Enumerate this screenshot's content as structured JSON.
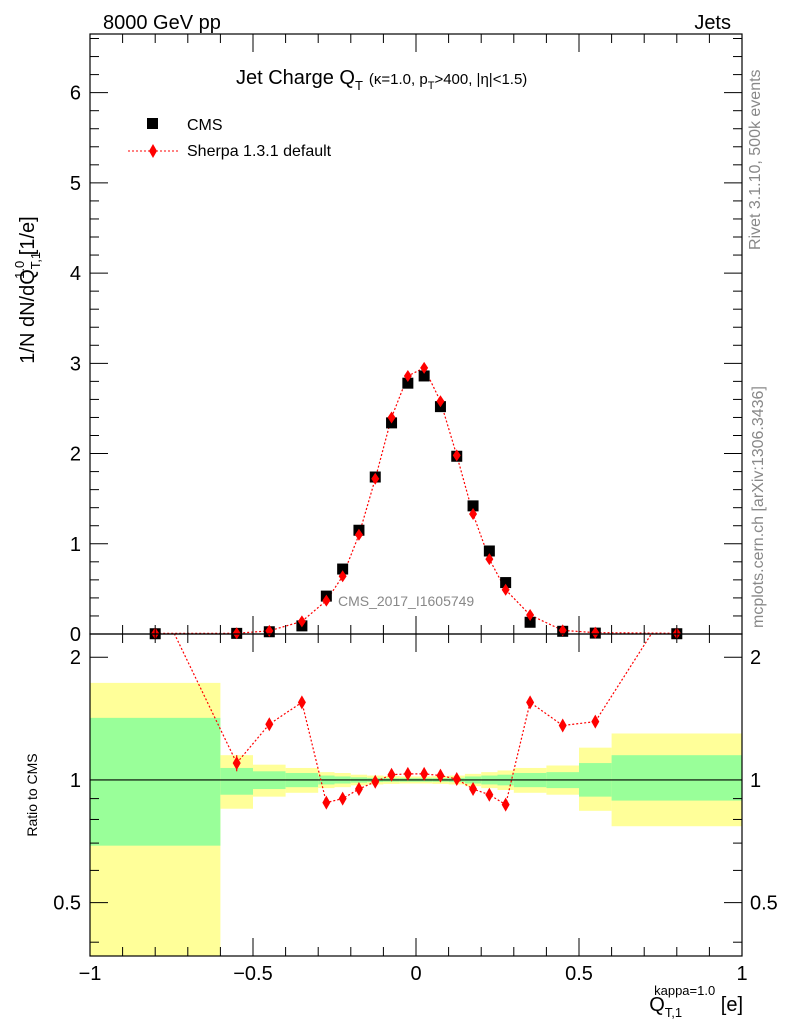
{
  "header": {
    "left": "8000 GeV pp",
    "right": "Jets",
    "side_top": "Rivet 3.1.10,  500k events",
    "side_bottom": "mcplots.cern.ch [arXiv:1306.3436]",
    "watermark": "CMS_2017_I1605749"
  },
  "chart_data": [
    {
      "type": "scatter",
      "panel": "main",
      "title": "Jet Charge Q",
      "title_sub": "T",
      "title_params": "(κ=1.0, p",
      "title_params_sub": "T",
      "title_params_rest": ">400, |η|<1.5)",
      "ylabel": "1/N dN/dQ",
      "ylabel_sup": "1.0",
      "ylabel_sub": "T,1",
      "ylabel_unit": " [1/e]",
      "xlim": [
        -1,
        1
      ],
      "ylim": [
        0,
        6.65
      ],
      "yticks": [
        "0",
        "1",
        "2",
        "3",
        "4",
        "5",
        "6"
      ],
      "legend_position": "top-left",
      "series": [
        {
          "name": "CMS",
          "color": "#000000",
          "marker": "square",
          "x": [
            -0.8,
            -0.55,
            -0.45,
            -0.35,
            -0.275,
            -0.225,
            -0.175,
            -0.125,
            -0.075,
            -0.025,
            0.025,
            0.075,
            0.125,
            0.175,
            0.225,
            0.275,
            0.35,
            0.45,
            0.55,
            0.8
          ],
          "y": [
            0.003,
            0.007,
            0.025,
            0.09,
            0.42,
            0.72,
            1.15,
            1.74,
            2.34,
            2.78,
            2.86,
            2.52,
            1.97,
            1.42,
            0.92,
            0.57,
            0.13,
            0.03,
            0.01,
            0.003
          ]
        },
        {
          "name": "Sherpa 1.3.1 default",
          "color": "#ff0000",
          "marker": "diamond",
          "line": "dotted",
          "x": [
            -0.8,
            -0.55,
            -0.45,
            -0.35,
            -0.275,
            -0.225,
            -0.175,
            -0.125,
            -0.075,
            -0.025,
            0.025,
            0.075,
            0.125,
            0.175,
            0.225,
            0.275,
            0.35,
            0.45,
            0.55,
            0.8
          ],
          "y": [
            0.007,
            0.008,
            0.035,
            0.14,
            0.37,
            0.64,
            1.1,
            1.72,
            2.4,
            2.86,
            2.95,
            2.58,
            1.98,
            1.33,
            0.83,
            0.49,
            0.21,
            0.04,
            0.015,
            0.008
          ]
        }
      ]
    },
    {
      "type": "scatter",
      "panel": "ratio",
      "ylabel": "Ratio to CMS",
      "xlabel": "Q",
      "xlabel_sup": "kappa=1.0",
      "xlabel_sub": "T,1",
      "xlabel_unit": " [e]",
      "xlim": [
        -1,
        1
      ],
      "ylim": [
        0.37,
        2.28
      ],
      "yscale": "log",
      "yticks": [
        "0.5",
        "1",
        "2"
      ],
      "xticks": [
        "−1",
        "−0.5",
        "0",
        "0.5",
        "1"
      ],
      "reference_line": 1,
      "bands": [
        {
          "x": [
            -1,
            -0.6
          ],
          "inner": [
            0.69,
            1.42
          ],
          "outer": [
            0.3,
            1.73
          ]
        },
        {
          "x": [
            -0.6,
            -0.5
          ],
          "inner": [
            0.92,
            1.07
          ],
          "outer": [
            0.85,
            1.15
          ]
        },
        {
          "x": [
            -0.5,
            -0.4
          ],
          "inner": [
            0.95,
            1.05
          ],
          "outer": [
            0.91,
            1.09
          ]
        },
        {
          "x": [
            -0.4,
            -0.3
          ],
          "inner": [
            0.96,
            1.04
          ],
          "outer": [
            0.93,
            1.07
          ]
        },
        {
          "x": [
            -0.3,
            -0.25
          ],
          "inner": [
            0.975,
            1.025
          ],
          "outer": [
            0.955,
            1.045
          ]
        },
        {
          "x": [
            -0.25,
            -0.2
          ],
          "inner": [
            0.98,
            1.02
          ],
          "outer": [
            0.96,
            1.04
          ]
        },
        {
          "x": [
            -0.2,
            -0.15
          ],
          "inner": [
            0.985,
            1.015
          ],
          "outer": [
            0.97,
            1.03
          ]
        },
        {
          "x": [
            -0.15,
            -0.1
          ],
          "inner": [
            0.988,
            1.012
          ],
          "outer": [
            0.975,
            1.025
          ]
        },
        {
          "x": [
            -0.1,
            -0.05
          ],
          "inner": [
            0.99,
            1.01
          ],
          "outer": [
            0.978,
            1.022
          ]
        },
        {
          "x": [
            -0.05,
            0
          ],
          "inner": [
            0.99,
            1.01
          ],
          "outer": [
            0.98,
            1.02
          ]
        },
        {
          "x": [
            0,
            0.05
          ],
          "inner": [
            0.99,
            1.01
          ],
          "outer": [
            0.98,
            1.02
          ]
        },
        {
          "x": [
            0.05,
            0.1
          ],
          "inner": [
            0.99,
            1.01
          ],
          "outer": [
            0.978,
            1.022
          ]
        },
        {
          "x": [
            0.1,
            0.15
          ],
          "inner": [
            0.988,
            1.012
          ],
          "outer": [
            0.975,
            1.025
          ]
        },
        {
          "x": [
            0.15,
            0.2
          ],
          "inner": [
            0.98,
            1.02
          ],
          "outer": [
            0.965,
            1.035
          ]
        },
        {
          "x": [
            0.2,
            0.25
          ],
          "inner": [
            0.975,
            1.025
          ],
          "outer": [
            0.955,
            1.045
          ]
        },
        {
          "x": [
            0.25,
            0.3
          ],
          "inner": [
            0.97,
            1.03
          ],
          "outer": [
            0.945,
            1.055
          ]
        },
        {
          "x": [
            0.3,
            0.4
          ],
          "inner": [
            0.96,
            1.04
          ],
          "outer": [
            0.93,
            1.07
          ]
        },
        {
          "x": [
            0.4,
            0.5
          ],
          "inner": [
            0.955,
            1.045
          ],
          "outer": [
            0.92,
            1.085
          ]
        },
        {
          "x": [
            0.5,
            0.6
          ],
          "inner": [
            0.91,
            1.1
          ],
          "outer": [
            0.84,
            1.2
          ]
        },
        {
          "x": [
            0.6,
            1
          ],
          "inner": [
            0.89,
            1.15
          ],
          "outer": [
            0.77,
            1.3
          ]
        }
      ],
      "series": [
        {
          "name": "Sherpa 1.3.1 default",
          "color": "#ff0000",
          "marker": "diamond",
          "line": "dotted",
          "x": [
            -0.55,
            -0.45,
            -0.35,
            -0.275,
            -0.225,
            -0.175,
            -0.125,
            -0.075,
            -0.025,
            0.025,
            0.075,
            0.125,
            0.175,
            0.225,
            0.275,
            0.35,
            0.45,
            0.55
          ],
          "y": [
            1.1,
            1.37,
            1.55,
            0.88,
            0.9,
            0.95,
            0.99,
            1.03,
            1.035,
            1.035,
            1.025,
            1.005,
            0.95,
            0.92,
            0.87,
            1.55,
            1.36,
            1.39
          ],
          "err": [
            0.05,
            0.04,
            0.0,
            0.0,
            0.0,
            0.0,
            0.0,
            0.0,
            0.0,
            0.0,
            0.0,
            0.0,
            0.0,
            0.0,
            0.0,
            0.0,
            0.03,
            0.04
          ],
          "offscale_left_x": -0.8,
          "offscale_right_x": 0.8
        }
      ]
    }
  ]
}
